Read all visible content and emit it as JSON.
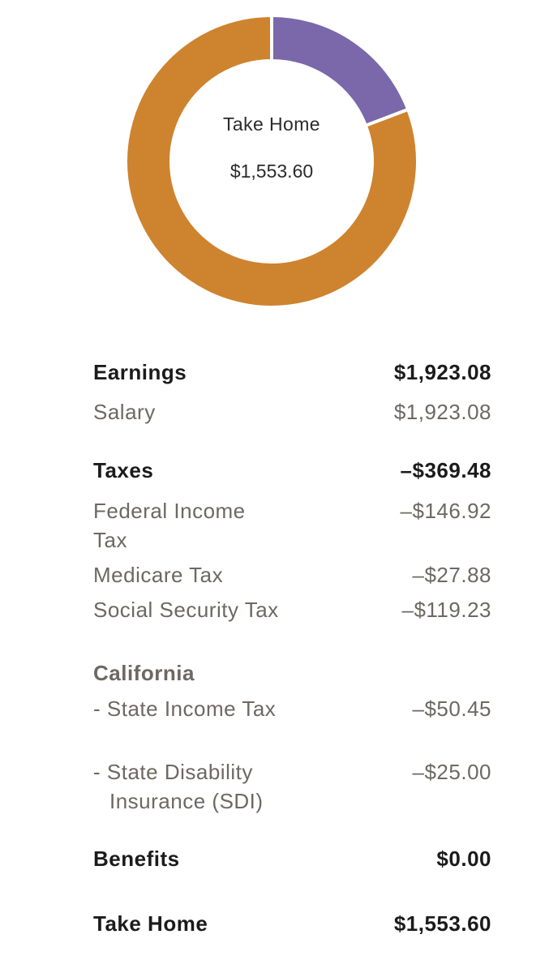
{
  "colors": {
    "take_home": "#CE832E",
    "taxes": "#7A68AB",
    "separator": "#ffffff"
  },
  "chart_data": {
    "type": "pie",
    "categories": [
      "Take Home",
      "Taxes",
      "Benefits"
    ],
    "values": [
      1553.6,
      369.48,
      0.0
    ],
    "center_title": "Take Home",
    "center_value": "$1,553.60"
  },
  "summary": {
    "earnings": {
      "label": "Earnings",
      "amount": "$1,923.08"
    },
    "salary": {
      "label": "Salary",
      "amount": "$1,923.08"
    },
    "taxes": {
      "label": "Taxes",
      "amount": "–$369.48"
    },
    "federal": {
      "label": "Federal Income Tax",
      "amount": "–$146.92"
    },
    "medicare": {
      "label": "Medicare Tax",
      "amount": "–$27.88"
    },
    "social": {
      "label": "Social Security Tax",
      "amount": "–$119.23"
    },
    "california": {
      "label": "California"
    },
    "state_income": {
      "label": "- State Income Tax",
      "amount": "–$50.45"
    },
    "sdi": {
      "label": "- State Disability Insurance (SDI)",
      "amount": "–$25.00"
    },
    "benefits": {
      "label": "Benefits",
      "amount": "$0.00"
    },
    "take_home": {
      "label": "Take Home",
      "amount": "$1,553.60"
    }
  }
}
